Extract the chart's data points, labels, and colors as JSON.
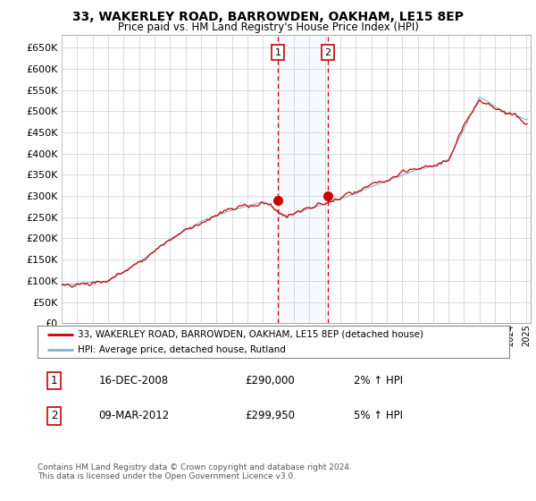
{
  "title1": "33, WAKERLEY ROAD, BARROWDEN, OAKHAM, LE15 8EP",
  "title2": "Price paid vs. HM Land Registry's House Price Index (HPI)",
  "legend_line1": "33, WAKERLEY ROAD, BARROWDEN, OAKHAM, LE15 8EP (detached house)",
  "legend_line2": "HPI: Average price, detached house, Rutland",
  "transaction1_date": "16-DEC-2008",
  "transaction1_price": "£290,000",
  "transaction1_hpi": "2% ↑ HPI",
  "transaction2_date": "09-MAR-2012",
  "transaction2_price": "£299,950",
  "transaction2_hpi": "5% ↑ HPI",
  "footer": "Contains HM Land Registry data © Crown copyright and database right 2024.\nThis data is licensed under the Open Government Licence v3.0.",
  "ylim_min": 0,
  "ylim_max": 680000,
  "yticks": [
    0,
    50000,
    100000,
    150000,
    200000,
    250000,
    300000,
    350000,
    400000,
    450000,
    500000,
    550000,
    600000,
    650000
  ],
  "hpi_color": "#7fb3d3",
  "price_paid_color": "#cc0000",
  "transaction1_x": 2008.96,
  "transaction2_x": 2012.19,
  "background_color": "#ffffff",
  "grid_color": "#cccccc",
  "plot_bg": "#ffffff",
  "span_color": "#ddeeff"
}
